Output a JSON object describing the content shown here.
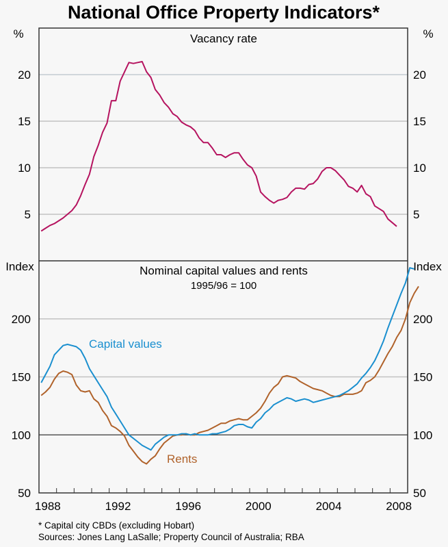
{
  "chart_data": [
    {
      "type": "line",
      "title": "National Office Property Indicators*",
      "panel_title": "Vacancy rate",
      "xlabel": "",
      "ylabel": "%",
      "ylim": [
        0,
        25
      ],
      "yticks": [
        5,
        10,
        15,
        20
      ],
      "xlim": [
        1988,
        2009
      ],
      "xticks": [
        1988,
        1992,
        1996,
        2000,
        2004,
        2008
      ],
      "grid": true,
      "frequency": "quarterly",
      "x_start": 1988.125,
      "series": [
        {
          "name": "Vacancy rate",
          "color": "#b5135f",
          "values": [
            3.2,
            3.5,
            3.8,
            4.0,
            4.3,
            4.6,
            5.0,
            5.4,
            6.0,
            7.0,
            8.2,
            9.3,
            11.2,
            12.4,
            13.8,
            14.8,
            17.2,
            17.2,
            19.3,
            20.3,
            21.3,
            21.2,
            21.3,
            21.4,
            20.3,
            19.7,
            18.4,
            17.8,
            17.0,
            16.5,
            15.8,
            15.5,
            14.9,
            14.6,
            14.4,
            14.0,
            13.2,
            12.7,
            12.7,
            12.1,
            11.4,
            11.4,
            11.1,
            11.4,
            11.6,
            11.6,
            10.9,
            10.3,
            10.0,
            9.1,
            7.4,
            6.9,
            6.5,
            6.2,
            6.5,
            6.6,
            6.8,
            7.4,
            7.8,
            7.8,
            7.7,
            8.2,
            8.3,
            8.8,
            9.6,
            10.0,
            10.0,
            9.7,
            9.2,
            8.7,
            8.0,
            7.8,
            7.4,
            8.1,
            7.2,
            6.9,
            5.9,
            5.6,
            5.3,
            4.5,
            4.1,
            3.7
          ]
        }
      ]
    },
    {
      "type": "line",
      "panel_title": "Nominal capital values and rents",
      "panel_subtitle": "1995/96 = 100",
      "xlabel": "",
      "ylabel": "Index",
      "ylim": [
        50,
        250
      ],
      "yticks": [
        50,
        100,
        150,
        200
      ],
      "xlim": [
        1988,
        2009
      ],
      "xticks": [
        1988,
        1992,
        1996,
        2000,
        2004,
        2008
      ],
      "grid": true,
      "frequency": "quarterly",
      "x_start": 1988.125,
      "series": [
        {
          "name": "Capital values",
          "color": "#1a8fcf",
          "values": [
            145,
            152,
            159,
            169,
            173,
            177,
            178,
            177,
            176,
            173,
            166,
            157,
            151,
            145,
            139,
            133,
            124,
            118,
            112,
            106,
            100,
            97,
            94,
            91,
            89,
            87,
            92,
            95,
            98,
            100,
            100,
            100,
            101,
            101,
            100,
            101,
            100,
            100,
            100,
            101,
            101,
            102,
            103,
            105,
            108,
            109,
            109,
            107,
            106,
            111,
            114,
            119,
            122,
            126,
            128,
            130,
            132,
            131,
            129,
            130,
            131,
            130,
            128,
            129,
            130,
            131,
            132,
            133,
            134,
            136,
            138,
            141,
            144,
            149,
            153,
            158,
            164,
            172,
            181,
            192,
            202,
            212,
            222,
            231,
            244,
            243
          ]
        },
        {
          "name": "Rents",
          "color": "#b0622a",
          "values": [
            134,
            137,
            141,
            148,
            153,
            155,
            154,
            152,
            143,
            138,
            137,
            138,
            131,
            128,
            121,
            116,
            108,
            106,
            103,
            99,
            91,
            86,
            81,
            77,
            75,
            79,
            82,
            88,
            93,
            96,
            99,
            100,
            100,
            101,
            100,
            100,
            102,
            103,
            104,
            106,
            108,
            110,
            110,
            112,
            113,
            114,
            113,
            113,
            116,
            119,
            123,
            129,
            136,
            141,
            144,
            150,
            151,
            150,
            149,
            146,
            144,
            142,
            140,
            139,
            138,
            136,
            134,
            133,
            133,
            135,
            135,
            135,
            136,
            138,
            145,
            147,
            150,
            156,
            163,
            170,
            176,
            184,
            190,
            200,
            214,
            222,
            228
          ]
        }
      ],
      "annotations": [
        {
          "text": "Capital values",
          "color": "#1a8fcf"
        },
        {
          "text": "Rents",
          "color": "#b0622a"
        }
      ]
    }
  ],
  "header": {
    "title": "National Office Property Indicators*"
  },
  "top_panel": {
    "title": "Vacancy rate",
    "left_unit": "%",
    "right_unit": "%",
    "ytick_labels": [
      "20",
      "15",
      "10",
      "5"
    ]
  },
  "bottom_panel": {
    "title": "Nominal capital values and rents",
    "subtitle": "1995/96 = 100",
    "left_unit": "Index",
    "right_unit": "Index",
    "ytick_labels": [
      "200",
      "150",
      "100",
      "50"
    ],
    "label_capital": "Capital values",
    "label_rents": "Rents"
  },
  "x_axis": {
    "tick_labels": [
      "1988",
      "1992",
      "1996",
      "2000",
      "2004",
      "2008"
    ]
  },
  "footnotes": {
    "note": "*    Capital city CBDs (excluding Hobart)",
    "sources": "Sources: Jones Lang LaSalle; Property Council of Australia; RBA"
  }
}
